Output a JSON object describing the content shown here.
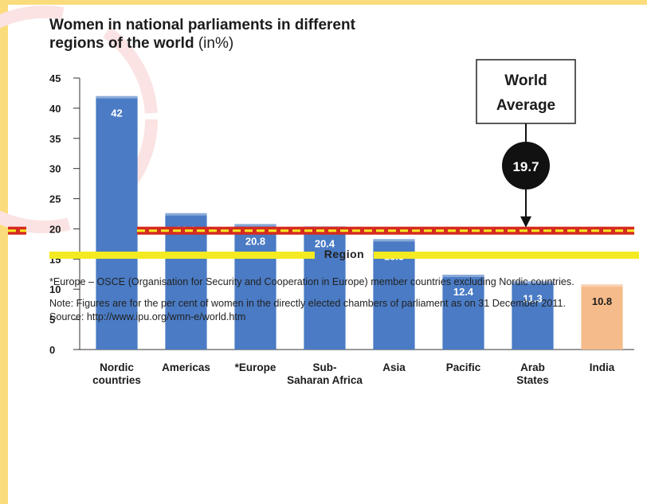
{
  "title": {
    "line1": "Women in  national parliaments in different",
    "line2_bold": "regions of the world",
    "line2_rest": " (in%)"
  },
  "chart_data": {
    "type": "bar",
    "categories": [
      [
        "Nordic",
        "countries"
      ],
      [
        "Americas"
      ],
      [
        "*Europe"
      ],
      [
        "Sub-",
        "Saharan Africa"
      ],
      [
        "Asia"
      ],
      [
        "Pacific"
      ],
      [
        "Arab",
        "States"
      ],
      [
        "India"
      ]
    ],
    "values": [
      42,
      22.6,
      20.8,
      20.4,
      18.3,
      12.4,
      11.3,
      10.8
    ],
    "value_labels": [
      "42",
      "22.6",
      "20.8",
      "20.4",
      "18.3",
      "12.4",
      "11.3",
      "10.8"
    ],
    "bar_colors": [
      "#4a7bc4",
      "#4a7bc4",
      "#4a7bc4",
      "#4a7bc4",
      "#4a7bc4",
      "#4a7bc4",
      "#4a7bc4",
      "#f6bb8a"
    ],
    "yticks": [
      0,
      5,
      10,
      15,
      20,
      25,
      30,
      35,
      40,
      45
    ],
    "ylim": [
      0,
      45
    ],
    "xlabel": "Region",
    "ylabel": "",
    "grid": false,
    "reference_line": {
      "value": 19.7,
      "label": "19.7",
      "callout": [
        "World",
        "Average"
      ],
      "style": "dashed",
      "colors": [
        "#d62b1f",
        "#f3ea22"
      ]
    }
  },
  "notes": {
    "europe_note": "*Europe – OSCE (Organisation for Security and Cooperation in Europe) member countries excluding Nordic countries.",
    "note": "Note: Figures are for the per cent of women in the directly elected chambers of parliament as on 31 December 2011.",
    "source": "Source: http://www.ipu.org/wmn-e/world.htm"
  }
}
